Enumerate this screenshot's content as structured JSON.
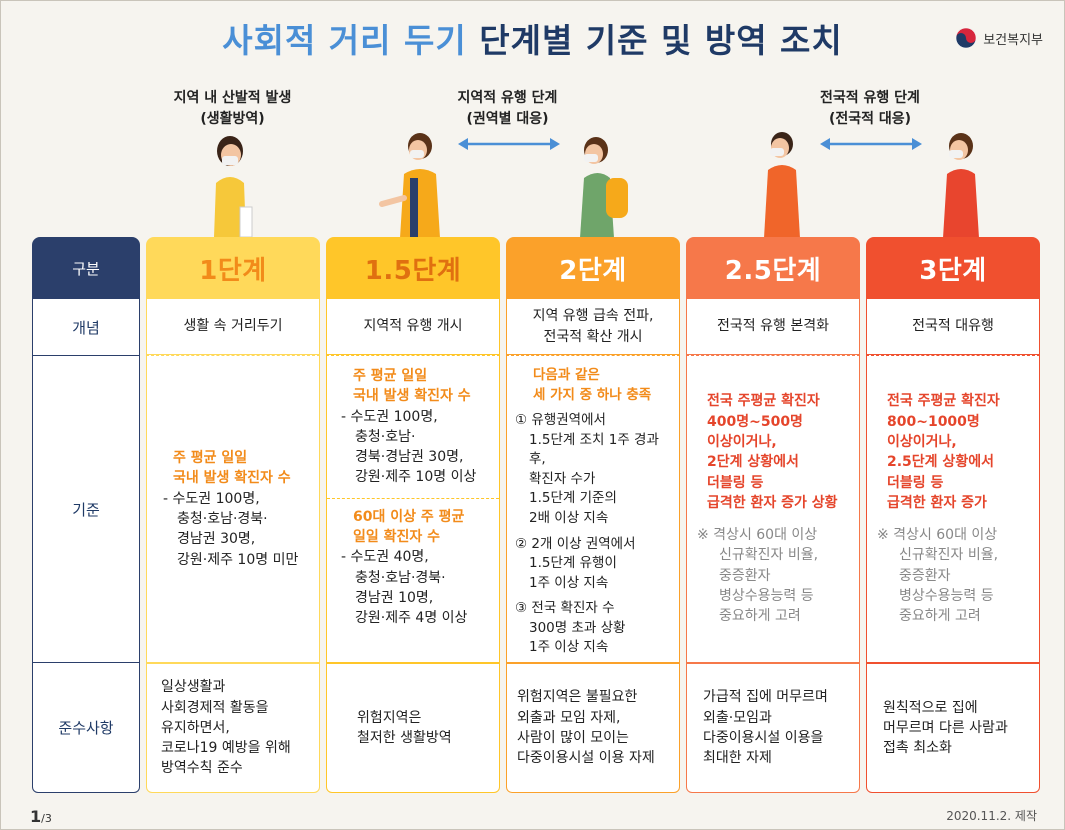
{
  "header": {
    "title_part1": "사회적 거리 두기",
    "title_part2": "단계별 기준 및 방역 조치",
    "ministry": "보건복지부"
  },
  "phases": [
    {
      "line1": "지역 내 산발적 발생",
      "line2": "(생활방역)"
    },
    {
      "line1": "지역적 유행 단계",
      "line2": "(권역별 대응)"
    },
    {
      "line1": "전국적 유행 단계",
      "line2": "(전국적 대응)"
    }
  ],
  "table": {
    "header_label": "구분",
    "row_labels": [
      "개념",
      "기준",
      "준수사항"
    ],
    "stages": [
      {
        "name": "1단계",
        "color": "#ffd95a",
        "text_color": "#f28b1a",
        "concept": "생활 속 거리두기",
        "criteria": {
          "heading1": "주 평균 일일",
          "heading2": "국내 발생 확진자 수",
          "lines": [
            "- 수도권 100명,",
            "충청·호남·경북·",
            "경남권 30명,",
            "강원·제주 10명 미만"
          ]
        },
        "compliance": [
          "일상생활과",
          "사회경제적 활동을",
          "유지하면서,",
          "코로나19 예방을 위해",
          "방역수칙 준수"
        ]
      },
      {
        "name": "1.5단계",
        "color": "#ffc629",
        "text_color": "#e07010",
        "concept": "지역적 유행 개시",
        "criteria": {
          "a_heading1": "주 평균 일일",
          "a_heading2": "국내 발생 확진자 수",
          "a_lines": [
            "- 수도권 100명,",
            "충청·호남·",
            "경북·경남권 30명,",
            "강원·제주 10명 이상"
          ],
          "b_heading1": "60대 이상 주 평균",
          "b_heading2": "일일 확진자 수",
          "b_lines": [
            "- 수도권 40명,",
            "충청·호남·경북·",
            "경남권 10명,",
            "강원·제주 4명 이상"
          ]
        },
        "compliance": [
          "위험지역은",
          "철저한 생활방역"
        ]
      },
      {
        "name": "2단계",
        "color": "#fba12a",
        "text_color": "#ffffff",
        "concept": [
          "지역 유행 급속 전파,",
          "전국적 확산 개시"
        ],
        "criteria": {
          "heading1": "다음과 같은",
          "heading2": "세 가지 중 하나 충족",
          "item1": [
            "① 유행권역에서",
            "1.5단계 조치 1주 경과 후,",
            "확진자 수가",
            "1.5단계 기준의",
            "2배 이상 지속"
          ],
          "item2": [
            "② 2개 이상 권역에서",
            "1.5단계 유행이",
            "1주 이상 지속"
          ],
          "item3": [
            "③ 전국 확진자 수",
            "300명 초과 상황",
            "1주 이상 지속"
          ]
        },
        "compliance": [
          "위험지역은 불필요한",
          "외출과 모임 자제,",
          "사람이 많이 모이는",
          "다중이용시설 이용 자제"
        ]
      },
      {
        "name": "2.5단계",
        "color": "#f6784a",
        "text_color": "#ffffff",
        "concept": "전국적 유행 본격화",
        "criteria": {
          "lines": [
            "전국 주평균 확진자",
            "400명~500명",
            "이상이거나,",
            "2단계 상황에서",
            "더블링 등",
            "급격한 환자 증가 상황"
          ],
          "note": [
            "※ 격상시 60대 이상",
            "신규확진자 비율,",
            "중증환자",
            "병상수용능력 등",
            "중요하게 고려"
          ]
        },
        "compliance": [
          "가급적 집에 머무르며",
          "외출·모임과",
          "다중이용시설 이용을",
          "최대한 자제"
        ]
      },
      {
        "name": "3단계",
        "color": "#f0502f",
        "text_color": "#ffffff",
        "concept": "전국적 대유행",
        "criteria": {
          "lines": [
            "전국 주평균 확진자",
            "800~1000명",
            "이상이거나,",
            "2.5단계 상황에서",
            "더블링 등",
            "급격한 환자 증가"
          ],
          "note": [
            "※ 격상시 60대 이상",
            "신규확진자 비율,",
            "중증환자",
            "병상수용능력 등",
            "중요하게 고려"
          ]
        },
        "compliance": [
          "원칙적으로 집에",
          "머무르며 다른 사람과",
          "접촉 최소화"
        ]
      }
    ]
  },
  "footer": {
    "page": "1",
    "total": "/3",
    "date": "2020.11.2. 제작"
  }
}
